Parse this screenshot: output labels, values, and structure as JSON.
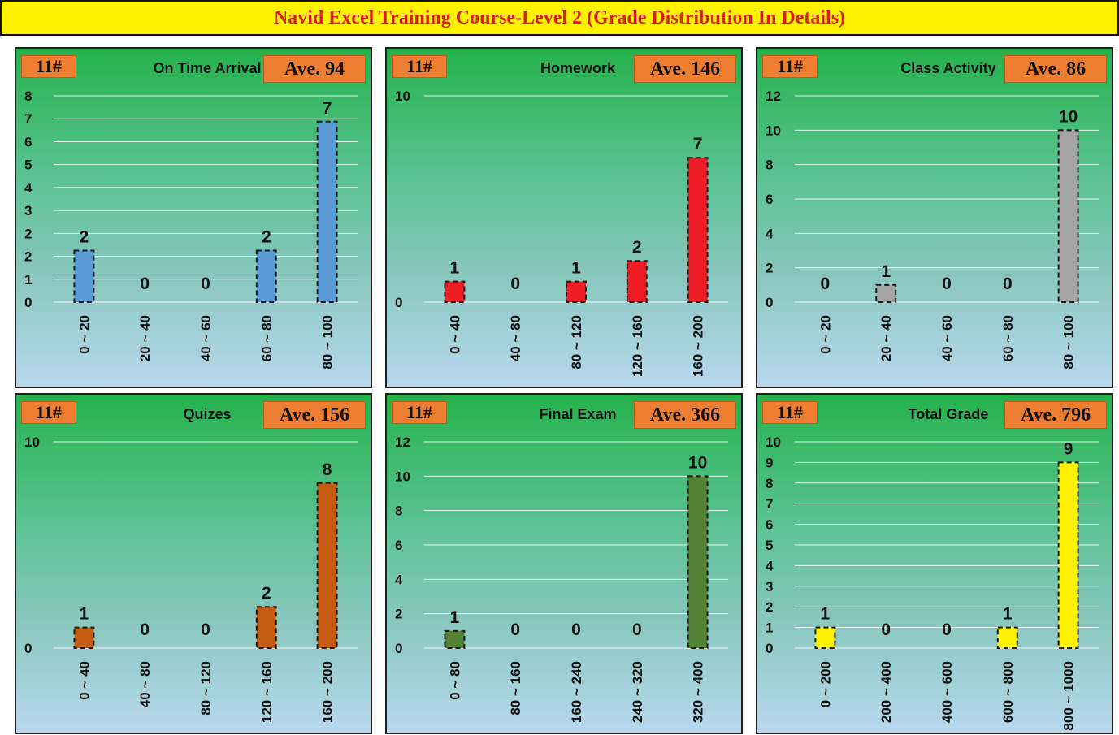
{
  "page_title": "Navid Excel Training Course-Level 2 (Grade Distribution In Details)",
  "chart_data": [
    {
      "type": "bar",
      "title": "On Time Arrival",
      "count_label": "11#",
      "average_label": "Ave. 94",
      "categories": [
        "0 ~ 20",
        "20 ~ 40",
        "40 ~ 60",
        "60 ~ 80",
        "80 ~ 100"
      ],
      "values": [
        2,
        0,
        0,
        2,
        7
      ],
      "yticks": [
        "0",
        "1",
        "2",
        "2",
        "3",
        "4",
        "5",
        "6",
        "7",
        "8"
      ],
      "ylim": [
        0,
        8
      ],
      "bar_color": "#5b9bd5",
      "grid": true
    },
    {
      "type": "bar",
      "title": "Homework",
      "count_label": "11#",
      "average_label": "Ave. 146",
      "categories": [
        "0 ~ 40",
        "40 ~ 80",
        "80 ~ 120",
        "120 ~ 160",
        "160 ~ 200"
      ],
      "values": [
        1,
        0,
        1,
        2,
        7
      ],
      "yticks": [
        "0",
        "10"
      ],
      "ylim": [
        0,
        10
      ],
      "bar_color": "#ee1c25",
      "grid": true
    },
    {
      "type": "bar",
      "title": "Class Activity",
      "count_label": "11#",
      "average_label": "Ave. 86",
      "categories": [
        "0 ~ 20",
        "20 ~ 40",
        "40 ~ 60",
        "60 ~ 80",
        "80 ~ 100"
      ],
      "values": [
        0,
        1,
        0,
        0,
        10
      ],
      "yticks": [
        "0",
        "2",
        "4",
        "6",
        "8",
        "10",
        "12"
      ],
      "ylim": [
        0,
        12
      ],
      "bar_color": "#a5a5a5",
      "grid": true
    },
    {
      "type": "bar",
      "title": "Quizes",
      "count_label": "11#",
      "average_label": "Ave. 156",
      "categories": [
        "0 ~ 40",
        "40 ~ 80",
        "80 ~ 120",
        "120 ~ 160",
        "160 ~ 200"
      ],
      "values": [
        1,
        0,
        0,
        2,
        8
      ],
      "yticks": [
        "0",
        "10"
      ],
      "ylim": [
        0,
        10
      ],
      "bar_color": "#c55a11",
      "grid": true
    },
    {
      "type": "bar",
      "title": "Final Exam",
      "count_label": "11#",
      "average_label": "Ave. 366",
      "categories": [
        "0 ~ 80",
        "80 ~ 160",
        "160 ~ 240",
        "240 ~ 320",
        "320 ~ 400"
      ],
      "values": [
        1,
        0,
        0,
        0,
        10
      ],
      "yticks": [
        "0",
        "2",
        "4",
        "6",
        "8",
        "10",
        "12"
      ],
      "ylim": [
        0,
        12
      ],
      "bar_color": "#548235",
      "grid": true
    },
    {
      "type": "bar",
      "title": "Total Grade",
      "count_label": "11#",
      "average_label": "Ave. 796",
      "categories": [
        "0 ~ 200",
        "200 ~ 400",
        "400 ~ 600",
        "600 ~ 800",
        "800 ~ 1000"
      ],
      "values": [
        1,
        0,
        0,
        1,
        9
      ],
      "yticks": [
        "0",
        "1",
        "2",
        "3",
        "4",
        "5",
        "6",
        "7",
        "8",
        "9",
        "10"
      ],
      "ylim": [
        0,
        10
      ],
      "bar_color": "#fff200",
      "grid": true
    }
  ]
}
